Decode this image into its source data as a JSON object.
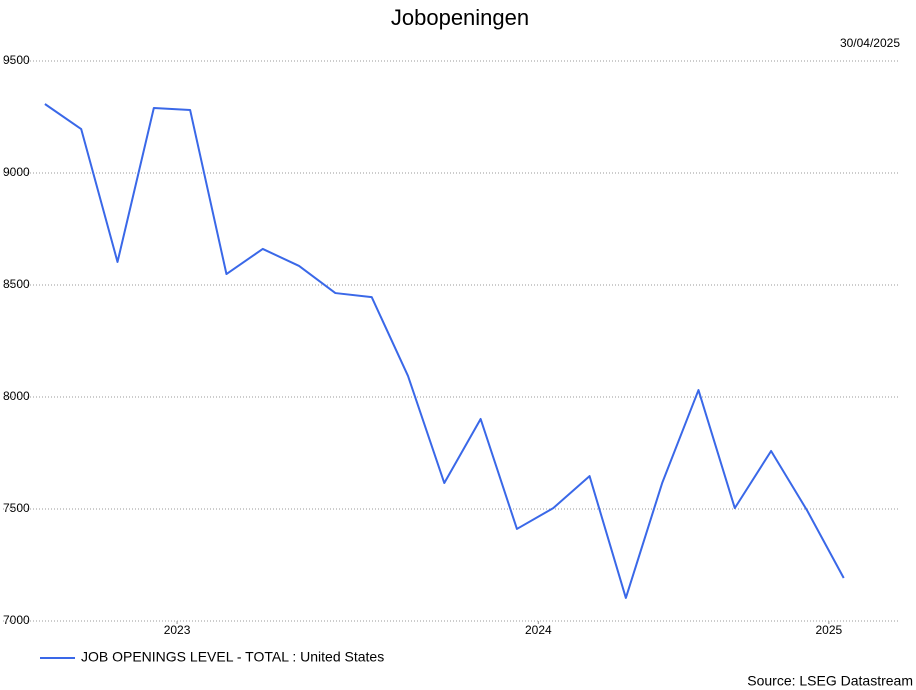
{
  "chart_data": {
    "type": "line",
    "title": "Jobopeningen",
    "date": "30/04/2025",
    "source": "Source: LSEG Datastream",
    "x": [
      0,
      1,
      2,
      3,
      4,
      5,
      6,
      7,
      8,
      9,
      10,
      11,
      12,
      13,
      14,
      15,
      16,
      17,
      18,
      19,
      20,
      21,
      22
    ],
    "xlim": [
      -0.19,
      23.55
    ],
    "xticks": [
      {
        "value": 3.64,
        "label": "2023"
      },
      {
        "value": 13.59,
        "label": "2024"
      },
      {
        "value": 21.59,
        "label": "2025"
      }
    ],
    "series": [
      {
        "name": "JOB OPENINGS LEVEL - TOTAL : United States",
        "color": "#3a68e8",
        "values": [
          9308,
          9196,
          8603,
          9290,
          9281,
          8549,
          8661,
          8585,
          8464,
          8446,
          8094,
          7616,
          7902,
          7411,
          7504,
          7647,
          7103,
          7616,
          8031,
          7504,
          7759,
          7491,
          7192
        ]
      }
    ],
    "ylim": [
      7000,
      9500
    ],
    "yticks": [
      7000,
      7500,
      8000,
      8500,
      9000,
      9500
    ],
    "grid": true,
    "legend": "bottom-left"
  }
}
